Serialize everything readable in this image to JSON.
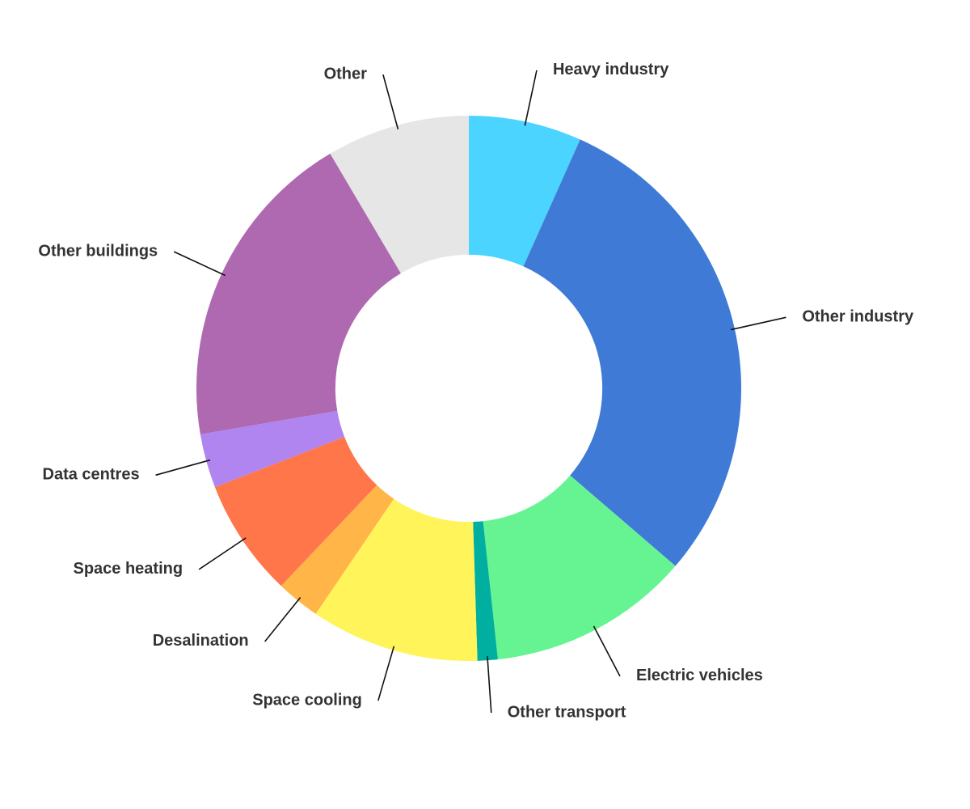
{
  "chart_data": {
    "type": "pie",
    "title": "",
    "hole_ratio": 0.49,
    "start_angle_deg": 0,
    "direction": "clockwise",
    "slices": [
      {
        "label": "Heavy industry",
        "value": 6.7,
        "color": "#4AD4FF"
      },
      {
        "label": "Other industry",
        "value": 29.6,
        "color": "#3F7BD6"
      },
      {
        "label": "Electric vehicles",
        "value": 12.0,
        "color": "#66F492"
      },
      {
        "label": "Other transport",
        "value": 1.2,
        "color": "#00AFA0"
      },
      {
        "label": "Space cooling",
        "value": 10.0,
        "color": "#FFF45A"
      },
      {
        "label": "Desalination",
        "value": 2.6,
        "color": "#FFB547"
      },
      {
        "label": "Space heating",
        "value": 7.0,
        "color": "#FF764B"
      },
      {
        "label": "Data centres",
        "value": 3.2,
        "color": "#B085F0"
      },
      {
        "label": "Other buildings",
        "value": 19.2,
        "color": "#AF69B0"
      },
      {
        "label": "Other",
        "value": 8.5,
        "color": "#E6E6E6"
      }
    ]
  }
}
